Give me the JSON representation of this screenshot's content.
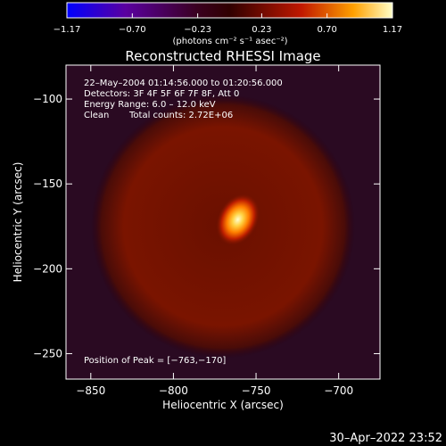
{
  "chart_data": {
    "type": "heatmap",
    "title": "Reconstructed RHESSI Image",
    "xlabel": "Heliocentric X (arcsec)",
    "ylabel": "Heliocentric Y (arcsec)",
    "xlim": [
      -865,
      -675
    ],
    "ylim": [
      -265,
      -80
    ],
    "x_ticks": [
      -850,
      -800,
      -750,
      -700
    ],
    "y_ticks": [
      -250,
      -200,
      -150,
      -100
    ],
    "x_tick_labels": [
      "−850",
      "−800",
      "−750",
      "−700"
    ],
    "y_tick_labels": [
      "−250",
      "−200",
      "−150",
      "−100"
    ],
    "colorbar": {
      "min": -1.17,
      "max": 1.17,
      "ticks": [
        -1.17,
        -0.7,
        -0.23,
        0.23,
        0.7,
        1.17
      ],
      "tick_labels": [
        "−1.17",
        "−0.70",
        "−0.23",
        "0.23",
        "0.70",
        "1.17"
      ],
      "unit_label": "(photons cm⁻² s⁻¹ asec⁻²)",
      "colors": [
        "#0000ff",
        "#5a00a0",
        "#3a0020",
        "#300000",
        "#c01800",
        "#ffa000",
        "#ffffc8"
      ]
    },
    "annotations": [
      "22–May–2004 01:14:56.000 to 01:20:56.000",
      "Detectors: 3F 4F 5F 6F 7F 8F, Att 0",
      "Energy Range: 6.0 – 12.0 keV",
      "Clean",
      "Total counts: 2.72E+06"
    ],
    "peak_label": "Position of Peak = [−763,−170]",
    "peak": {
      "x": -763,
      "y": -170,
      "value": 1.17
    },
    "source": {
      "x": -761,
      "y": -171,
      "rx": 12,
      "ry": 16,
      "tilt_deg": 28
    },
    "ring": {
      "x": -770,
      "y": -175,
      "radius": 80,
      "value": 0.25
    },
    "background_value": -0.23
  },
  "timestamp": "30–Apr–2022 23:52"
}
